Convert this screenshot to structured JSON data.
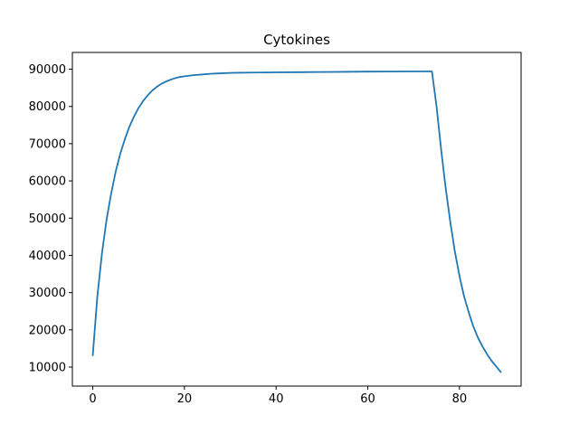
{
  "chart_data": {
    "type": "line",
    "title": "Cytokines",
    "xlabel": "",
    "ylabel": "",
    "xlim": [
      -4.45,
      93.45
    ],
    "ylim": [
      4900,
      94500
    ],
    "xticks": [
      0,
      20,
      40,
      60,
      80
    ],
    "yticks": [
      10000,
      20000,
      30000,
      40000,
      50000,
      60000,
      70000,
      80000,
      90000
    ],
    "grid": false,
    "series": [
      {
        "color": "#1f77b4",
        "x": [
          0,
          1,
          2,
          3,
          4,
          5,
          6,
          7,
          8,
          9,
          10,
          11,
          12,
          13,
          14,
          15,
          16,
          17,
          18,
          19,
          20,
          22,
          24,
          26,
          28,
          30,
          32,
          35,
          40,
          45,
          50,
          55,
          60,
          65,
          70,
          74,
          75,
          76,
          77,
          78,
          79,
          80,
          81,
          82,
          83,
          84,
          85,
          86,
          87,
          88,
          89
        ],
        "y": [
          13200,
          29000,
          40500,
          49500,
          56500,
          62500,
          67300,
          71200,
          74600,
          77300,
          79600,
          81500,
          83000,
          84300,
          85300,
          86100,
          86700,
          87200,
          87600,
          87900,
          88100,
          88400,
          88600,
          88800,
          88900,
          89000,
          89050,
          89100,
          89150,
          89200,
          89250,
          89300,
          89350,
          89380,
          89400,
          89400,
          80000,
          68500,
          58000,
          49000,
          41000,
          34500,
          29000,
          24800,
          21000,
          18000,
          15600,
          13500,
          11700,
          10200,
          8700
        ]
      }
    ]
  }
}
